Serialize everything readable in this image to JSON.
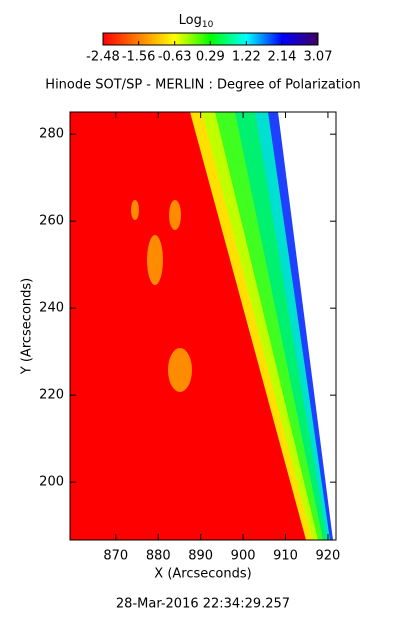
{
  "chart_data": {
    "type": "heatmap",
    "title": "Hinode SOT/SP - MERLIN : Degree of Polarization",
    "xlabel": "X (Arcseconds)",
    "ylabel": "Y (Arcseconds)",
    "xlim": [
      859.2,
      921.9
    ],
    "xticks": [
      870,
      880,
      890,
      900,
      910,
      920
    ],
    "ylim": [
      186.7,
      285.1
    ],
    "yticks": [
      200,
      220,
      240,
      260,
      280
    ],
    "colorbar": {
      "label": "Log",
      "label_subscript": "10",
      "lim": [
        -2.48,
        3.07
      ],
      "ticks": [
        -2.48,
        -1.56,
        -0.63,
        0.29,
        1.22,
        2.14,
        3.07
      ],
      "colors": [
        "#ff0000",
        "#ff8000",
        "#ffff00",
        "#00ff00",
        "#00ffff",
        "#0000ff",
        "#400060"
      ]
    },
    "footer": "28-Mar-2016 22:34:29.257"
  }
}
